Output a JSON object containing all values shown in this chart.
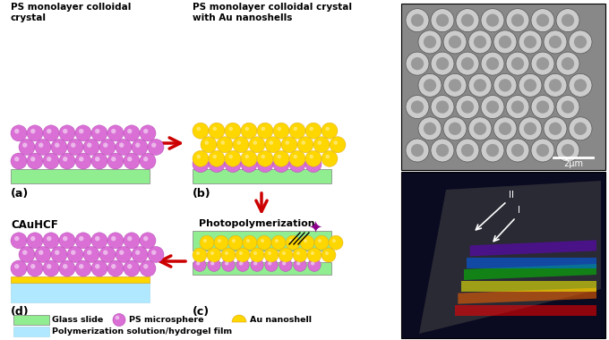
{
  "bg_color": "#ffffff",
  "title_a": "PS monolayer colloidal\ncrystal",
  "title_b": "PS monolayer colloidal crystal\nwith Au nanoshells",
  "title_c": "Photopolymerization",
  "title_d": "CAuHCF",
  "label_a": "(a)",
  "label_b": "(b)",
  "label_c": "(c)",
  "label_d": "(d)",
  "glass_color": "#90EE90",
  "ps_color": "#DA70D6",
  "ps_border": "#B040B0",
  "au_color": "#FFD700",
  "au_border": "#DAA520",
  "hydrogel_color": "#B0E8FF",
  "arrow_color": "#CC0000",
  "photon_color": "#8B008B",
  "sem_scale_text": "2μm",
  "sem_bg": "#888888",
  "sem_sphere_light": "#CCCCCC",
  "sem_sphere_dark": "#999999",
  "sem_sphere_edge": "#555555",
  "photo_bg": "#0a0a20",
  "rainbow_colors": [
    "#FF0000",
    "#FF6600",
    "#FFFF00",
    "#00CC00",
    "#0066FF",
    "#6600CC"
  ]
}
